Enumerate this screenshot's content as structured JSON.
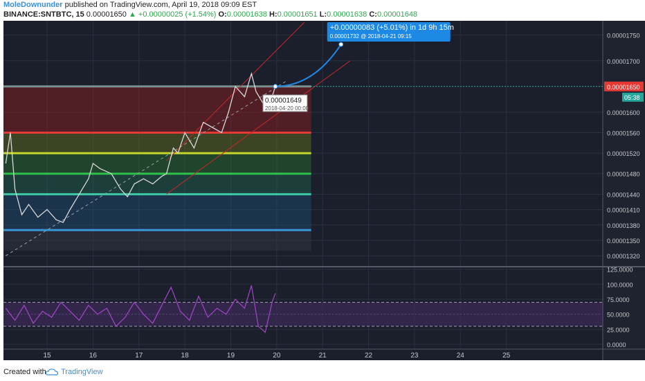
{
  "header": {
    "author": "MoleDownunder",
    "published_text": " published on TradingView.com, April 19, 2018 09:09 EST",
    "symbol": "BINANCE:SNTBTC, 15",
    "price": "0.00001650",
    "change": "▲ +0.00000025 (+1.54%)",
    "o_label": "O:",
    "o_value": "0.00001638",
    "h_label": "H:",
    "h_value": "0.00001651",
    "l_label": "L:",
    "l_value": "0.00001638",
    "c_label": "C:",
    "c_value": "0.00001648"
  },
  "footer": {
    "created_with": "Created with",
    "brand": "TradingView"
  },
  "chart_data": {
    "type": "line",
    "main": {
      "ylim": [
        1.3e-05,
        1.778e-05
      ],
      "yticks": [
        "0.00001750",
        "0.00001700",
        "0.00001650",
        "0.00001600",
        "0.00001560",
        "0.00001520",
        "0.00001480",
        "0.00001440",
        "0.00001410",
        "0.00001380",
        "0.00001350",
        "0.00001320"
      ],
      "ytick_values": [
        1.75e-05,
        1.7e-05,
        1.65e-05,
        1.6e-05,
        1.56e-05,
        1.52e-05,
        1.48e-05,
        1.44e-05,
        1.41e-05,
        1.38e-05,
        1.35e-05,
        1.32e-05
      ],
      "last_price_label": "0.00001650",
      "last_price": 1.65e-05,
      "countdown": "05:38",
      "fib_levels": [
        {
          "value": 1.65e-05,
          "color": "#8c8c8c"
        },
        {
          "value": 1.56e-05,
          "color": "#e53935"
        },
        {
          "value": 1.52e-05,
          "color": "#c6d628"
        },
        {
          "value": 1.48e-05,
          "color": "#2dc04a"
        },
        {
          "value": 1.44e-05,
          "color": "#3ec9a8"
        },
        {
          "value": 1.37e-05,
          "color": "#3a98d8"
        }
      ],
      "fib_zones": [
        {
          "from": 1.65e-05,
          "to": 1.56e-05,
          "color": "#b71c1c"
        },
        {
          "from": 1.56e-05,
          "to": 1.52e-05,
          "color": "#7a8a1a"
        },
        {
          "from": 1.52e-05,
          "to": 1.48e-05,
          "color": "#2e8a2e"
        },
        {
          "from": 1.48e-05,
          "to": 1.44e-05,
          "color": "#1f7a5a"
        },
        {
          "from": 1.44e-05,
          "to": 1.37e-05,
          "color": "#1f5a8a"
        },
        {
          "from": 1.37e-05,
          "to": 1.33e-05,
          "color": "#3a3f4a"
        }
      ],
      "price_series": [
        {
          "day": 14.1,
          "price": 1.5e-05
        },
        {
          "day": 14.2,
          "price": 1.56e-05
        },
        {
          "day": 14.3,
          "price": 1.45e-05
        },
        {
          "day": 14.45,
          "price": 1.4e-05
        },
        {
          "day": 14.6,
          "price": 1.42e-05
        },
        {
          "day": 14.8,
          "price": 1.395e-05
        },
        {
          "day": 15.0,
          "price": 1.41e-05
        },
        {
          "day": 15.2,
          "price": 1.39e-05
        },
        {
          "day": 15.35,
          "price": 1.385e-05
        },
        {
          "day": 15.5,
          "price": 1.41e-05
        },
        {
          "day": 15.7,
          "price": 1.44e-05
        },
        {
          "day": 15.9,
          "price": 1.47e-05
        },
        {
          "day": 16.0,
          "price": 1.5e-05
        },
        {
          "day": 16.15,
          "price": 1.49e-05
        },
        {
          "day": 16.4,
          "price": 1.48e-05
        },
        {
          "day": 16.6,
          "price": 1.45e-05
        },
        {
          "day": 16.75,
          "price": 1.435e-05
        },
        {
          "day": 16.9,
          "price": 1.46e-05
        },
        {
          "day": 17.1,
          "price": 1.47e-05
        },
        {
          "day": 17.3,
          "price": 1.46e-05
        },
        {
          "day": 17.5,
          "price": 1.475e-05
        },
        {
          "day": 17.6,
          "price": 1.48e-05
        },
        {
          "day": 17.75,
          "price": 1.53e-05
        },
        {
          "day": 17.85,
          "price": 1.52e-05
        },
        {
          "day": 18.0,
          "price": 1.56e-05
        },
        {
          "day": 18.2,
          "price": 1.53e-05
        },
        {
          "day": 18.4,
          "price": 1.58e-05
        },
        {
          "day": 18.6,
          "price": 1.57e-05
        },
        {
          "day": 18.8,
          "price": 1.56e-05
        },
        {
          "day": 18.95,
          "price": 1.6e-05
        },
        {
          "day": 19.1,
          "price": 1.65e-05
        },
        {
          "day": 19.3,
          "price": 1.63e-05
        },
        {
          "day": 19.45,
          "price": 1.675e-05
        },
        {
          "day": 19.55,
          "price": 1.64e-05
        },
        {
          "day": 19.75,
          "price": 1.61e-05
        },
        {
          "day": 19.9,
          "price": 1.63e-05
        },
        {
          "day": 19.97,
          "price": 1.65e-05
        }
      ],
      "projection": {
        "from_day": 19.97,
        "to_day": 21.4,
        "from_price": 1.65e-05,
        "to_price": 1.732e-05
      },
      "projection_label_1": "+0.00000083 (+5.01%) in 1d 9h 15m",
      "projection_label_2": "0.00001732  @ 2018-04-21  09:15",
      "cursor_label_1": "0.00001649",
      "cursor_label_2": "2018-04-20 00:00",
      "channel_color": "#c62828"
    },
    "rsi": {
      "ylim": [
        -8,
        128
      ],
      "yticks": [
        "125.0000",
        "100.0000",
        "75.0000",
        "50.0000",
        "25.0000",
        "0.0000"
      ],
      "ytick_values": [
        125,
        100,
        75,
        50,
        25,
        0
      ],
      "band": [
        30,
        70
      ],
      "series": [
        {
          "day": 14.1,
          "value": 60
        },
        {
          "day": 14.3,
          "value": 40
        },
        {
          "day": 14.5,
          "value": 65
        },
        {
          "day": 14.7,
          "value": 35
        },
        {
          "day": 14.9,
          "value": 55
        },
        {
          "day": 15.1,
          "value": 45
        },
        {
          "day": 15.3,
          "value": 70
        },
        {
          "day": 15.5,
          "value": 55
        },
        {
          "day": 15.7,
          "value": 40
        },
        {
          "day": 15.9,
          "value": 65
        },
        {
          "day": 16.1,
          "value": 50
        },
        {
          "day": 16.3,
          "value": 60
        },
        {
          "day": 16.5,
          "value": 30
        },
        {
          "day": 16.7,
          "value": 45
        },
        {
          "day": 16.9,
          "value": 70
        },
        {
          "day": 17.1,
          "value": 50
        },
        {
          "day": 17.3,
          "value": 35
        },
        {
          "day": 17.5,
          "value": 65
        },
        {
          "day": 17.7,
          "value": 95
        },
        {
          "day": 17.9,
          "value": 55
        },
        {
          "day": 18.1,
          "value": 40
        },
        {
          "day": 18.3,
          "value": 80
        },
        {
          "day": 18.5,
          "value": 45
        },
        {
          "day": 18.7,
          "value": 60
        },
        {
          "day": 18.9,
          "value": 50
        },
        {
          "day": 19.1,
          "value": 75
        },
        {
          "day": 19.3,
          "value": 60
        },
        {
          "day": 19.45,
          "value": 98
        },
        {
          "day": 19.6,
          "value": 30
        },
        {
          "day": 19.75,
          "value": 20
        },
        {
          "day": 19.9,
          "value": 70
        },
        {
          "day": 19.97,
          "value": 85
        }
      ]
    },
    "x_axis": {
      "ticks": [
        "15",
        "16",
        "17",
        "18",
        "19",
        "20",
        "21",
        "22",
        "23",
        "24",
        "25"
      ],
      "tick_values": [
        15,
        16,
        17,
        18,
        19,
        20,
        21,
        22,
        23,
        24,
        25
      ],
      "xlim": [
        14.05,
        27.1
      ]
    },
    "colors": {
      "background": "#1b1f2b",
      "grid": "#2b3040",
      "price": "#d9d9d9",
      "rsi": "#a347c9",
      "rsi_band": "#3c2a5a",
      "projection": "#1e88e5",
      "last_price_badge": "#e53935",
      "countdown_badge": "#26a69a",
      "axis_text": "#c8c8c8"
    }
  }
}
